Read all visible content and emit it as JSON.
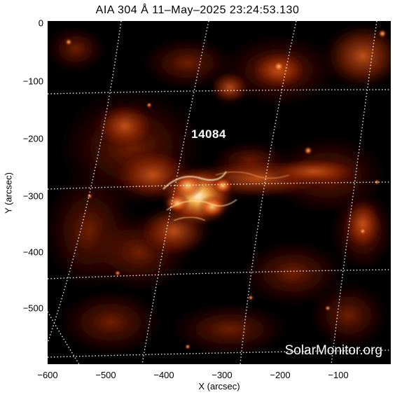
{
  "title": "AIA 304 Å 11–May–2025 23:24:53.130",
  "axes": {
    "xlabel": "X (arcsec)",
    "ylabel": "Y (arcsec)",
    "xticks": [
      "−600",
      "−500",
      "−400",
      "−300",
      "−200",
      "−100"
    ],
    "yticks": [
      "0",
      "−100",
      "−200",
      "−300",
      "−400",
      "−500"
    ],
    "xrange": [
      -600,
      -10
    ],
    "yrange": [
      -590,
      0
    ]
  },
  "region": {
    "label": "14084"
  },
  "watermark": "SolarMonitor.org",
  "colors": {
    "background": "#000000",
    "emission_dark": "#3a0600",
    "emission_mid": "#b8320a",
    "emission_bright": "#ff9a3c",
    "emission_peak": "#fff2c8",
    "grid": "#ffffff"
  }
}
